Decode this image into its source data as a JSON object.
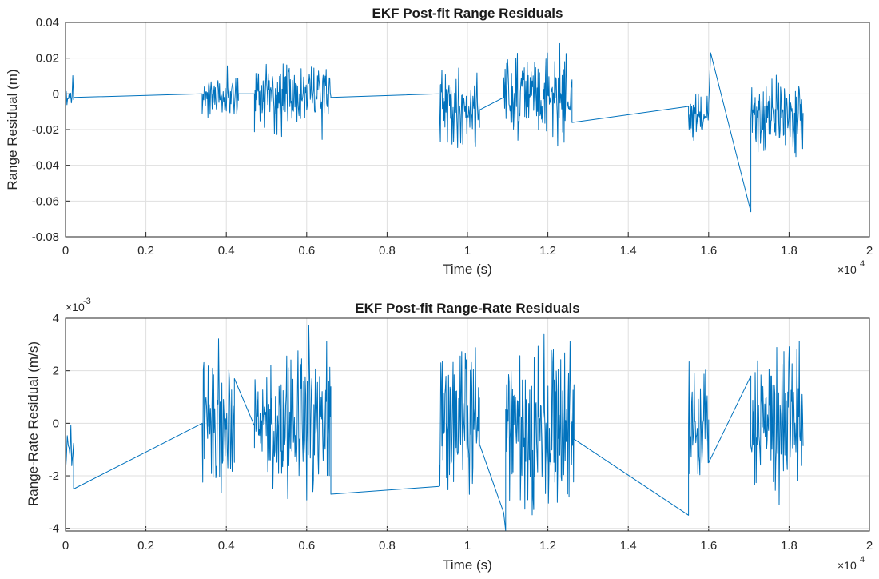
{
  "figure": {
    "background": "#ffffff",
    "series_color": "#0072bd"
  },
  "chart_data": [
    {
      "type": "line",
      "title": "EKF Post-fit Range Residuals",
      "xlabel": "Time (s)",
      "ylabel": "Range Residual (m)",
      "xlim": [
        0,
        20000
      ],
      "ylim": [
        -0.08,
        0.04
      ],
      "x_ticks": [
        0,
        2000,
        4000,
        6000,
        8000,
        10000,
        12000,
        14000,
        16000,
        18000,
        20000
      ],
      "x_tick_labels": [
        "0",
        "0.2",
        "0.4",
        "0.6",
        "0.8",
        "1",
        "1.2",
        "1.4",
        "1.6",
        "1.8",
        "2"
      ],
      "x_exponent_label": "×10",
      "x_exponent_power": "4",
      "y_ticks": [
        0.04,
        0.02,
        0,
        -0.02,
        -0.04,
        -0.06,
        -0.08
      ],
      "y_tick_labels": [
        "0.04",
        "0.02",
        "0",
        "-0.02",
        "-0.04",
        "-0.06",
        "-0.08"
      ],
      "grid": true,
      "series_color": "#0072bd",
      "segments": [
        {
          "kind": "noise",
          "x_start": 0,
          "x_end": 200,
          "n": 12,
          "amp": 0.009,
          "center": 0.0,
          "seed": 11
        },
        {
          "kind": "line",
          "points": [
            [
              200,
              -0.002
            ],
            [
              3400,
              0.0
            ]
          ]
        },
        {
          "kind": "noise",
          "x_start": 3400,
          "x_end": 4300,
          "n": 70,
          "amp": 0.011,
          "center": 0.0,
          "seed": 21
        },
        {
          "kind": "line",
          "points": [
            [
              4300,
              0.0
            ],
            [
              4700,
              0.0
            ]
          ]
        },
        {
          "kind": "noise",
          "x_start": 4700,
          "x_end": 6600,
          "n": 150,
          "amp": 0.016,
          "center": -0.001,
          "seed": 31
        },
        {
          "kind": "line",
          "points": [
            [
              6600,
              -0.002
            ],
            [
              9300,
              0.0
            ]
          ]
        },
        {
          "kind": "noise",
          "x_start": 9300,
          "x_end": 10300,
          "n": 80,
          "amp": 0.018,
          "center": -0.008,
          "seed": 41
        },
        {
          "kind": "line",
          "points": [
            [
              10300,
              -0.009
            ],
            [
              10900,
              -0.002
            ]
          ]
        },
        {
          "kind": "noise",
          "x_start": 10900,
          "x_end": 12600,
          "n": 140,
          "amp": 0.02,
          "center": 0.0,
          "seed": 51
        },
        {
          "kind": "line",
          "points": [
            [
              12600,
              -0.016
            ],
            [
              15500,
              -0.007
            ]
          ]
        },
        {
          "kind": "noise",
          "x_start": 15500,
          "x_end": 16000,
          "n": 40,
          "amp": 0.014,
          "center": -0.015,
          "seed": 61
        },
        {
          "kind": "line",
          "points": [
            [
              16000,
              -0.006
            ],
            [
              16050,
              0.023
            ],
            [
              17050,
              -0.066
            ]
          ]
        },
        {
          "kind": "noise",
          "x_start": 17050,
          "x_end": 18350,
          "n": 110,
          "amp": 0.018,
          "center": -0.012,
          "seed": 71
        }
      ]
    },
    {
      "type": "line",
      "title": "EKF Post-fit Range-Rate Residuals",
      "xlabel": "Time (s)",
      "ylabel": "Range-Rate Residual (m/s)",
      "xlim": [
        0,
        20000
      ],
      "ylim": [
        -0.0041,
        0.004
      ],
      "x_ticks": [
        0,
        2000,
        4000,
        6000,
        8000,
        10000,
        12000,
        14000,
        16000,
        18000,
        20000
      ],
      "x_tick_labels": [
        "0",
        "0.2",
        "0.4",
        "0.6",
        "0.8",
        "1",
        "1.2",
        "1.4",
        "1.6",
        "1.8",
        "2"
      ],
      "x_exponent_label": "×10",
      "x_exponent_power": "4",
      "y_ticks": [
        0.004,
        0.002,
        0,
        -0.002,
        -0.004
      ],
      "y_tick_labels": [
        "4",
        "2",
        "0",
        "-2",
        "-4"
      ],
      "y_exponent_label": "×10",
      "y_exponent_power": "-3",
      "grid": true,
      "series_color": "#0072bd",
      "segments": [
        {
          "kind": "noise",
          "x_start": 0,
          "x_end": 200,
          "n": 10,
          "amp": 0.0011,
          "center": -0.0008,
          "seed": 12
        },
        {
          "kind": "line",
          "points": [
            [
              200,
              -0.0025
            ],
            [
              3400,
              0.0
            ]
          ]
        },
        {
          "kind": "noise",
          "x_start": 3400,
          "x_end": 4200,
          "n": 60,
          "amp": 0.0022,
          "center": 0.0,
          "seed": 22
        },
        {
          "kind": "line",
          "points": [
            [
              4200,
              0.0017
            ],
            [
              4700,
              -0.0001
            ]
          ]
        },
        {
          "kind": "noise",
          "x_start": 4700,
          "x_end": 6600,
          "n": 150,
          "amp": 0.0024,
          "center": 0.0,
          "seed": 32
        },
        {
          "kind": "line",
          "points": [
            [
              6600,
              -0.0027
            ],
            [
              9300,
              -0.0024
            ]
          ]
        },
        {
          "kind": "noise",
          "x_start": 9300,
          "x_end": 10300,
          "n": 80,
          "amp": 0.0024,
          "center": 0.0,
          "seed": 42
        },
        {
          "kind": "line",
          "points": [
            [
              10300,
              -0.0008
            ],
            [
              10900,
              -0.0034
            ],
            [
              10950,
              -0.0041
            ]
          ]
        },
        {
          "kind": "noise",
          "x_start": 10950,
          "x_end": 12650,
          "n": 140,
          "amp": 0.0026,
          "center": 0.0,
          "seed": 52
        },
        {
          "kind": "line",
          "points": [
            [
              12650,
              -0.0006
            ],
            [
              15500,
              -0.0035
            ]
          ]
        },
        {
          "kind": "noise",
          "x_start": 15500,
          "x_end": 16000,
          "n": 40,
          "amp": 0.0018,
          "center": 0.0,
          "seed": 62
        },
        {
          "kind": "line",
          "points": [
            [
              16000,
              -0.0015
            ],
            [
              17050,
              0.0018
            ]
          ]
        },
        {
          "kind": "noise",
          "x_start": 17050,
          "x_end": 18350,
          "n": 110,
          "amp": 0.0025,
          "center": 0.0,
          "seed": 72
        }
      ]
    }
  ]
}
